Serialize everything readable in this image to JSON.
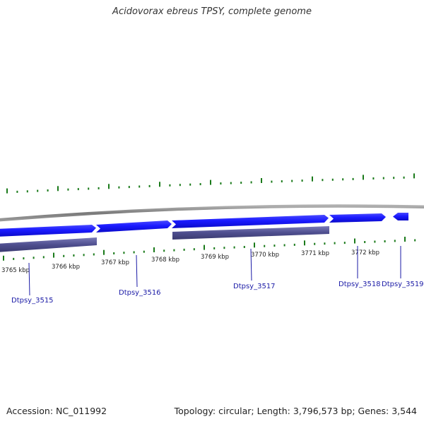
{
  "title": "Acidovorax ebreus TPSY, complete genome",
  "footer": {
    "accession": "Accession: NC_011992",
    "summary": "Topology: circular; Length: 3,796,573 bp; Genes: 3,544"
  },
  "scale_labels": [
    "3765 kbp",
    "3766 kbp",
    "3767 kbp",
    "3768 kbp",
    "3769 kbp",
    "3770 kbp",
    "3771 kbp",
    "3772 kbp"
  ],
  "genes": [
    {
      "name": "Dtpsy_3515",
      "strand": "+"
    },
    {
      "name": "Dtpsy_3516",
      "strand": "+"
    },
    {
      "name": "Dtpsy_3517",
      "strand": "+"
    },
    {
      "name": "Dtpsy_3518",
      "strand": "+"
    },
    {
      "name": "Dtpsy_3519",
      "strand": "-"
    }
  ],
  "colors": {
    "backbone": "#8a8a8a",
    "gene_forward": "#1a1aff",
    "gene_reverse": "#1a1aff",
    "operon": "#5a5a9a",
    "gc_ticks": "#1a7a1a",
    "label_line": "#1a1aa6"
  }
}
